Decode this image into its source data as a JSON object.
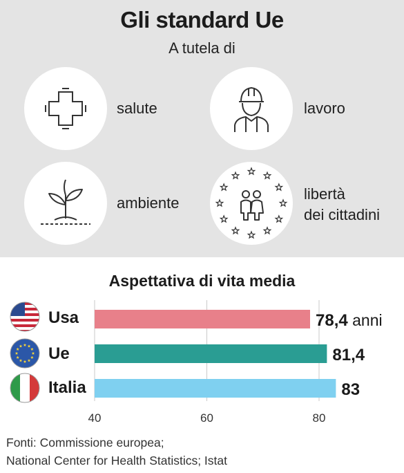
{
  "header": {
    "title": "Gli standard Ue",
    "subtitle": "A tutela di"
  },
  "categories": [
    {
      "icon": "medical-cross-icon",
      "label_lines": [
        "salute"
      ]
    },
    {
      "icon": "worker-hardhat-icon",
      "label_lines": [
        "lavoro"
      ]
    },
    {
      "icon": "plant-sprout-icon",
      "label_lines": [
        "ambiente"
      ]
    },
    {
      "icon": "eu-stars-citizens-icon",
      "label_lines": [
        "libertà",
        "dei cittadini"
      ]
    }
  ],
  "chart_data": {
    "type": "bar",
    "orientation": "horizontal",
    "title": "Aspettativa di vita media",
    "categories": [
      "Usa",
      "Ue",
      "Italia"
    ],
    "values": [
      78.4,
      81.4,
      83
    ],
    "value_labels": [
      "78,4",
      "81,4",
      "83"
    ],
    "unit_suffix": " anni",
    "bar_colors": [
      "#e8808a",
      "#2a9d93",
      "#7fd0f0"
    ],
    "flags": [
      "usa-flag-icon",
      "eu-flag-icon",
      "italy-flag-icon"
    ],
    "xlim": [
      40,
      85
    ],
    "xticks": [
      40,
      60,
      80
    ],
    "grid": true
  },
  "source": {
    "line1": "Fonti: Commissione europea;",
    "line2": "National Center for Health Statistics; Istat"
  }
}
